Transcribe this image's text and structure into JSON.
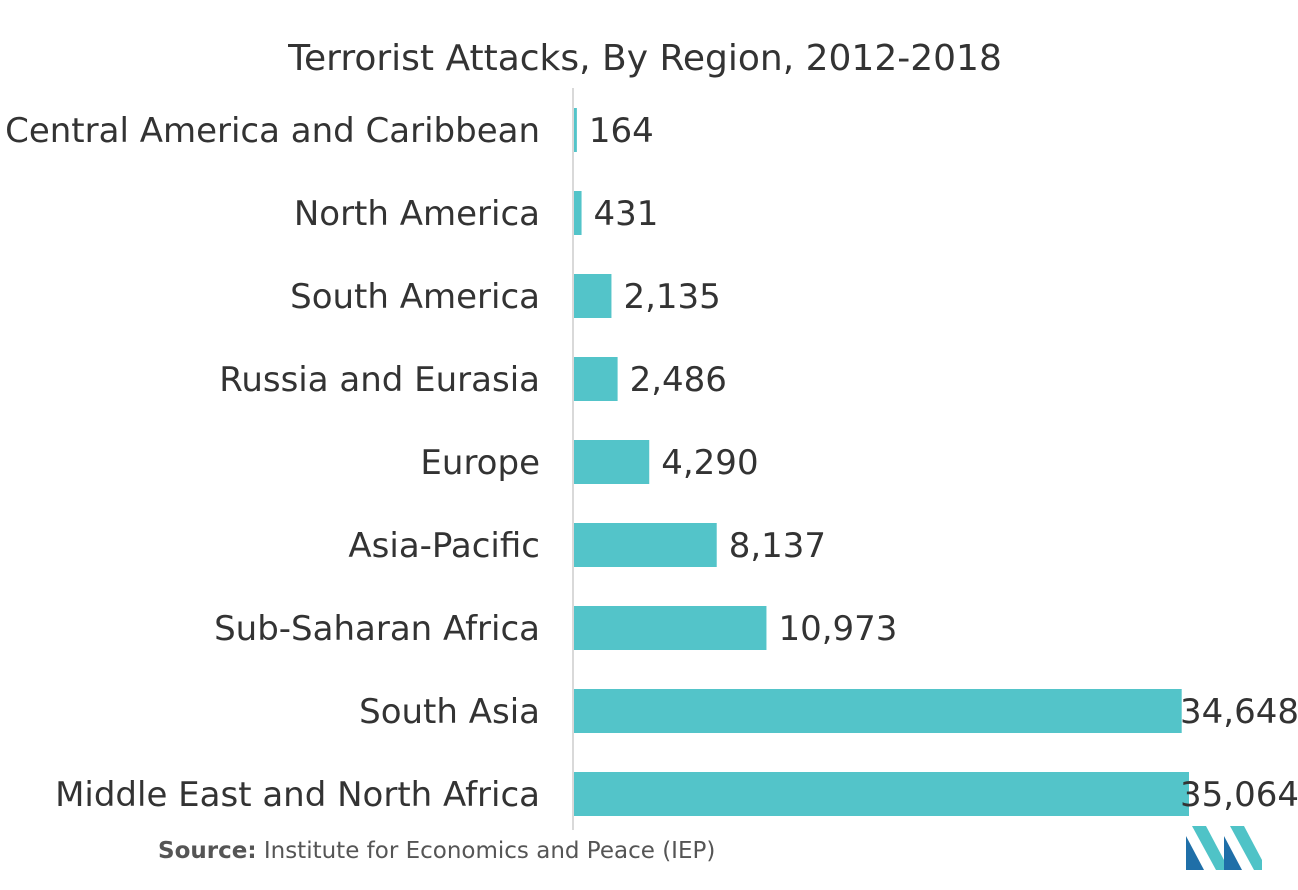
{
  "chart_data": {
    "type": "bar",
    "orientation": "horizontal",
    "title": "Terrorist Attacks, By Region, 2012-2018",
    "categories": [
      "Central America and Caribbean",
      "North America",
      "South America",
      "Russia and Eurasia",
      "Europe",
      "Asia-Pacific",
      "Sub-Saharan Africa",
      "South Asia",
      "Middle East and North Africa"
    ],
    "values": [
      164,
      431,
      2135,
      2486,
      4290,
      8137,
      10973,
      34648,
      35064
    ],
    "value_labels": [
      "164",
      "431",
      "2,135",
      "2,486",
      "4,290",
      "8,137",
      "10,973",
      "34,648",
      "35,064"
    ],
    "xlim": [
      0,
      35064
    ],
    "grid": false,
    "bar_color": "#53c4c9"
  },
  "source": {
    "prefix": "Source:",
    "text": "Institute for Economics and Peace (IEP)"
  },
  "logo": {
    "icon": "mordor-intelligence-logo-icon",
    "colors": [
      "#1f6fa8",
      "#4fc3c7"
    ]
  }
}
